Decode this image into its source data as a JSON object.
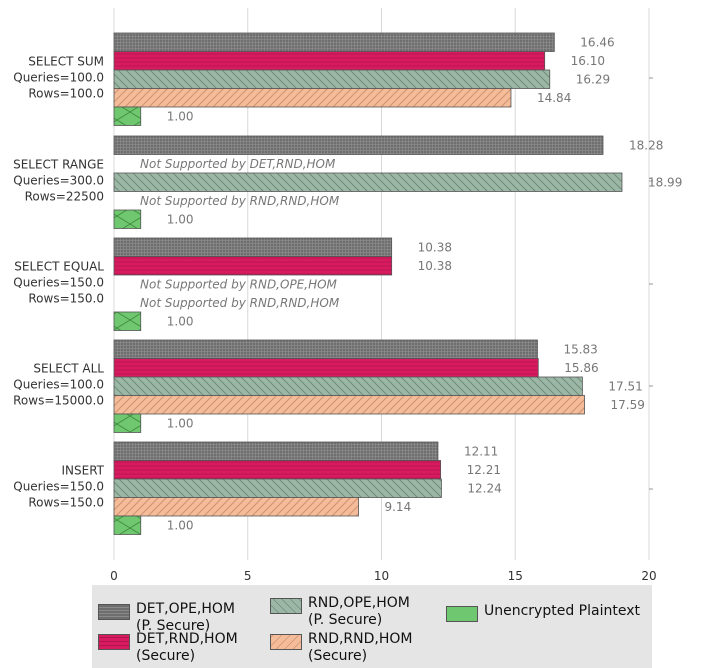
{
  "chart_data": {
    "type": "bar",
    "orientation": "horizontal",
    "xlim": [
      0,
      20
    ],
    "xticks": [
      0,
      5,
      10,
      15,
      20
    ],
    "grid": true,
    "legend_placement": "bottom",
    "groups": [
      {
        "label": [
          "SELECT SUM",
          "Queries=100.0",
          "Rows=100.0"
        ],
        "values": [
          16.46,
          16.1,
          16.29,
          14.84,
          1.0
        ],
        "labels": [
          "16.46",
          "16.10",
          "16.29",
          "14.84",
          "1.00"
        ],
        "notes": [
          null,
          null,
          null,
          null,
          null
        ]
      },
      {
        "label": [
          "SELECT RANGE",
          "Queries=300.0",
          "Rows=22500"
        ],
        "values": [
          18.28,
          null,
          18.99,
          null,
          1.0
        ],
        "labels": [
          "18.28",
          null,
          "18.99",
          null,
          "1.00"
        ],
        "notes": [
          null,
          "Not Supported by DET,RND,HOM",
          null,
          "Not Supported by RND,RND,HOM",
          null
        ]
      },
      {
        "label": [
          "SELECT EQUAL",
          "Queries=150.0",
          "Rows=150.0"
        ],
        "values": [
          10.38,
          10.38,
          null,
          null,
          1.0
        ],
        "labels": [
          "10.38",
          "10.38",
          null,
          null,
          "1.00"
        ],
        "notes": [
          null,
          null,
          "Not Supported by RND,OPE,HOM",
          "Not Supported by RND,RND,HOM",
          null
        ]
      },
      {
        "label": [
          "SELECT ALL",
          "Queries=100.0",
          "Rows=15000.0"
        ],
        "values": [
          15.83,
          15.86,
          17.51,
          17.59,
          1.0
        ],
        "labels": [
          "15.83",
          "15.86",
          "17.51",
          "17.59",
          "1.00"
        ],
        "notes": [
          null,
          null,
          null,
          null,
          null
        ]
      },
      {
        "label": [
          "INSERT",
          "Queries=150.0",
          "Rows=150.0"
        ],
        "values": [
          12.11,
          12.21,
          12.24,
          9.14,
          1.0
        ],
        "labels": [
          "12.11",
          "12.21",
          "12.24",
          "9.14",
          "1.00"
        ],
        "notes": [
          null,
          null,
          null,
          null,
          null
        ]
      }
    ],
    "series": [
      {
        "name": "DET,OPE,HOM\n(P. Secure)",
        "color": "#6e6e6e",
        "pattern": "grid"
      },
      {
        "name": "DET,RND,HOM\n(Secure)",
        "color": "#d81b60",
        "pattern": "hlines"
      },
      {
        "name": "RND,OPE,HOM\n(P. Secure)",
        "color": "#9cb7a6",
        "pattern": "backdiag"
      },
      {
        "name": "RND,RND,HOM\n(Secure)",
        "color": "#f4bc99",
        "pattern": "diag"
      },
      {
        "name": "Unencrypted Plaintext",
        "color": "#6fc76f",
        "pattern": "cross"
      }
    ]
  }
}
